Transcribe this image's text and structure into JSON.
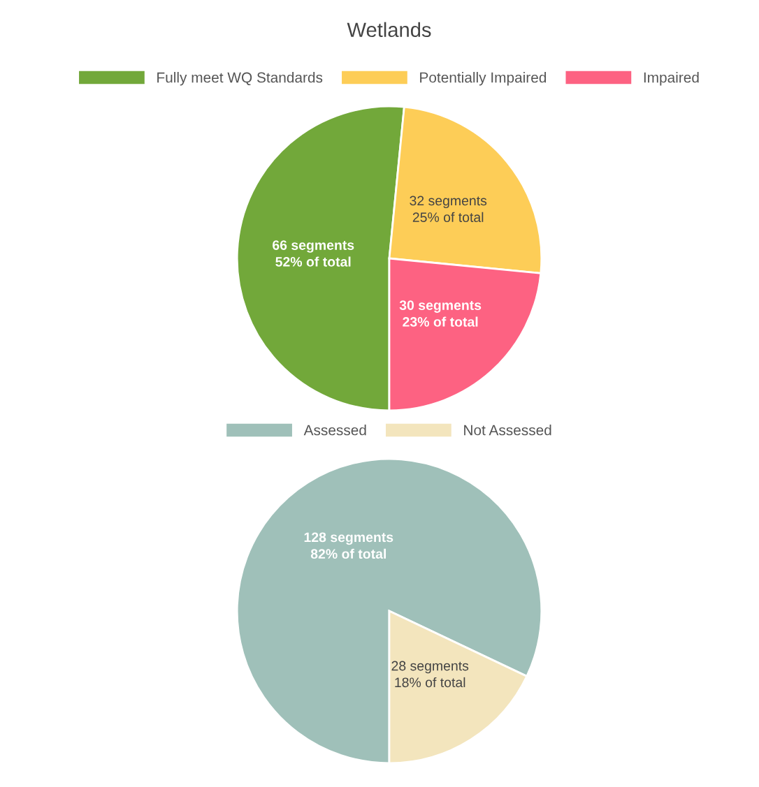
{
  "chart_data": [
    {
      "type": "pie",
      "title": "Wetlands",
      "categories": [
        "Fully meet WQ Standards",
        "Potentially Impaired",
        "Impaired"
      ],
      "values": [
        66,
        32,
        30
      ],
      "colors": [
        "#72a83a",
        "#fdcd57",
        "#fd6282"
      ],
      "value_labels": [
        "66 segments\n52% of total",
        "32 segments\n25% of total",
        "30 segments\n23% of total"
      ],
      "legend": "top"
    },
    {
      "type": "pie",
      "categories": [
        "Assessed",
        "Not Assessed"
      ],
      "values": [
        128,
        28
      ],
      "colors": [
        "#9fc0b9",
        "#f3e5bd"
      ],
      "value_labels": [
        "128 segments\n82% of total",
        "28 segments\n18% of total"
      ],
      "legend": "top"
    }
  ]
}
